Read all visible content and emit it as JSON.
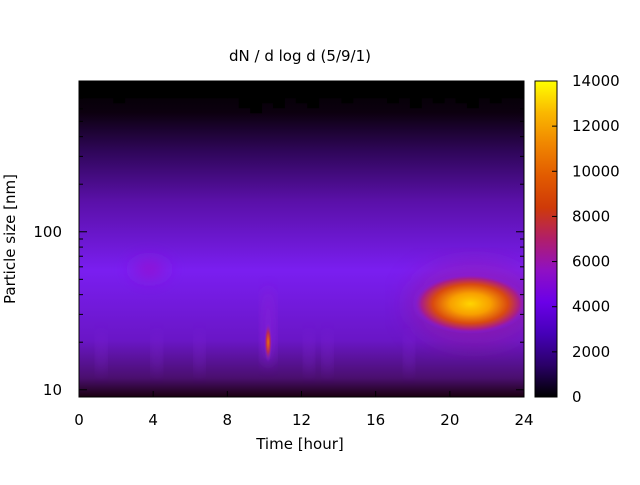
{
  "chart_data": {
    "type": "heatmap",
    "title": "dN / d log d (5/9/1)",
    "xlabel": "Time [hour]",
    "ylabel": "Particle size [nm]",
    "x_range": [
      0,
      24
    ],
    "x_ticks": [
      0,
      4,
      8,
      12,
      16,
      20,
      24
    ],
    "y_scale": "log",
    "y_range_nm": [
      9,
      900
    ],
    "y_ticks": [
      {
        "value": 10,
        "label": "10"
      },
      {
        "value": 100,
        "label": "100"
      }
    ],
    "colorbar": {
      "palette": "gnuplot",
      "range": [
        0,
        14000
      ],
      "ticks": [
        0,
        2000,
        4000,
        6000,
        8000,
        10000,
        12000,
        14000
      ]
    },
    "features": [
      {
        "description": "background concentration",
        "x_range": [
          0,
          24
        ],
        "y_range_nm": [
          10,
          700
        ],
        "approx_value": 2000
      },
      {
        "description": "weak mode",
        "x_center": 3.8,
        "y_center_nm": 58,
        "approx_value": 5000
      },
      {
        "description": "narrow burst",
        "x_center": 10.2,
        "y_center_nm": 20,
        "approx_value": 7500
      },
      {
        "description": "evening peak",
        "x_range": [
          18,
          24
        ],
        "y_center_nm": 35,
        "approx_value": 12000
      },
      {
        "description": "no data",
        "y_above_nm": 700,
        "value": null
      }
    ]
  }
}
